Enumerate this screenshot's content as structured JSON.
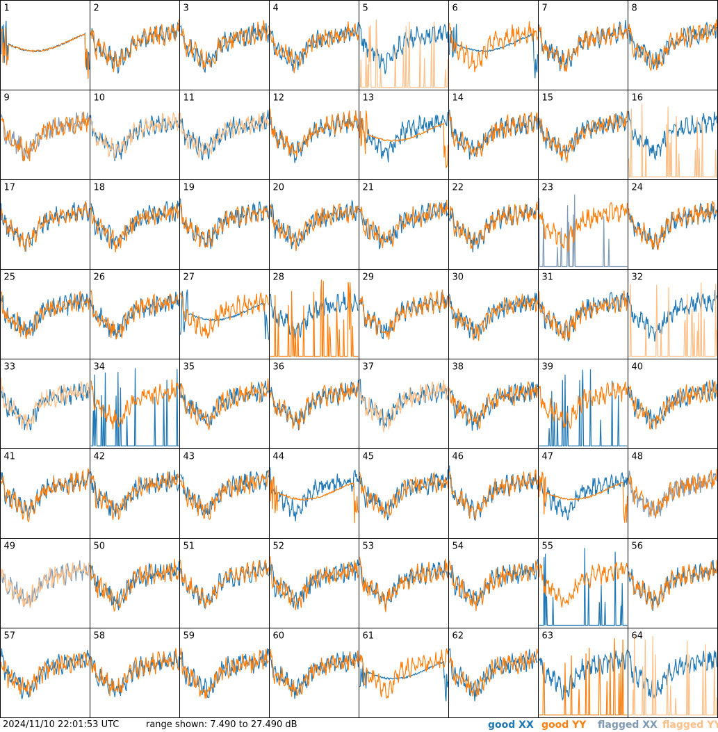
{
  "chart_data": {
    "type": "line",
    "panels": 64,
    "columns": 8,
    "rows": 8,
    "panel_labels": [
      "1",
      "2",
      "3",
      "4",
      "5",
      "6",
      "7",
      "8",
      "9",
      "10",
      "11",
      "12",
      "13",
      "14",
      "15",
      "16",
      "17",
      "18",
      "19",
      "20",
      "21",
      "22",
      "23",
      "24",
      "25",
      "26",
      "27",
      "28",
      "29",
      "30",
      "31",
      "32",
      "33",
      "34",
      "35",
      "36",
      "37",
      "38",
      "39",
      "40",
      "41",
      "42",
      "43",
      "44",
      "45",
      "46",
      "47",
      "48",
      "49",
      "50",
      "51",
      "52",
      "53",
      "54",
      "55",
      "56",
      "57",
      "58",
      "59",
      "60",
      "61",
      "62",
      "63",
      "64"
    ],
    "yrange_db": [
      7.49,
      27.49
    ],
    "series": [
      {
        "name": "good XX",
        "color": "#1f77b4"
      },
      {
        "name": "good YY",
        "color": "#ff7f0e"
      },
      {
        "name": "flagged XX",
        "color": "#7f9ab4"
      },
      {
        "name": "flagged YY",
        "color": "#ffbf87"
      }
    ],
    "panel_flags": {
      "xx_flagged": [
        9,
        23,
        48,
        49
      ],
      "yy_flagged": [
        5,
        10,
        11,
        16,
        32,
        33,
        37,
        49,
        64
      ],
      "xx_spiky": [
        23,
        34,
        39,
        55
      ],
      "yy_spiky": [
        5,
        16,
        28,
        32,
        63,
        64
      ],
      "xx_smooth": [
        1,
        6,
        27,
        61
      ],
      "yy_smooth": [
        1,
        13,
        44,
        47
      ]
    }
  },
  "footer": {
    "timestamp": "2024/11/10 22:01:53 UTC",
    "range_text": "range shown: 7.490 to 27.490 dB"
  },
  "legend": {
    "good_xx": "good XX",
    "good_yy": "good YY",
    "flagged_xx": "flagged XX",
    "flagged_yy": "flagged YY",
    "colors": {
      "good_xx": "#1f77b4",
      "good_yy": "#ff7f0e",
      "flagged_xx": "#7f9ab4",
      "flagged_yy": "#ffbf87"
    }
  }
}
